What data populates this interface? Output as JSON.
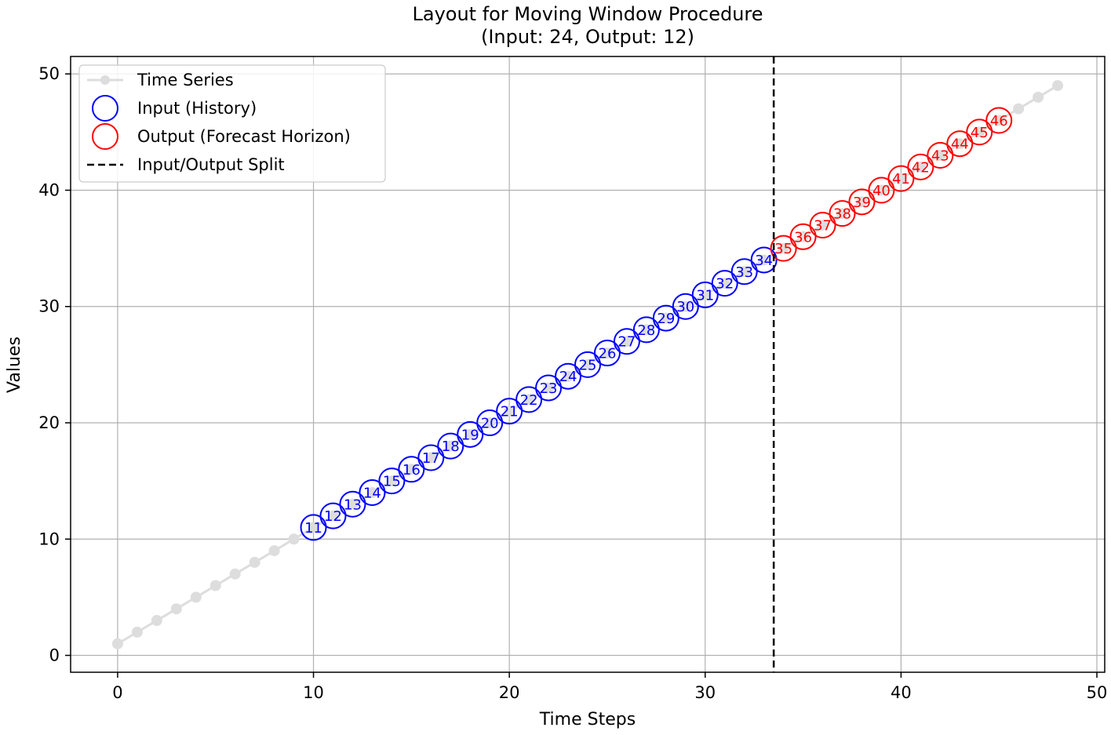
{
  "chart_data": {
    "type": "scatter",
    "title": "Layout for Moving Window Procedure",
    "subtitle": "(Input: 24, Output: 12)",
    "xlabel": "Time Steps",
    "ylabel": "Values",
    "xlim": [
      -2.4,
      50.4
    ],
    "ylim": [
      -1.45,
      51.5
    ],
    "xticks": [
      0,
      10,
      20,
      30,
      40,
      50
    ],
    "yticks": [
      0,
      10,
      20,
      30,
      40,
      50
    ],
    "xtick_labels": [
      "0",
      "10",
      "20",
      "30",
      "40",
      "50"
    ],
    "ytick_labels": [
      "0",
      "10",
      "20",
      "30",
      "40",
      "50"
    ],
    "grid": true,
    "legend_position": "upper-left",
    "split_x": 33.5,
    "series": [
      {
        "name": "Time Series",
        "kind": "line-markers",
        "color": "#dddddd",
        "x": [
          0,
          1,
          2,
          3,
          4,
          5,
          6,
          7,
          8,
          9,
          10,
          11,
          12,
          13,
          14,
          15,
          16,
          17,
          18,
          19,
          20,
          21,
          22,
          23,
          24,
          25,
          26,
          27,
          28,
          29,
          30,
          31,
          32,
          33,
          34,
          35,
          36,
          37,
          38,
          39,
          40,
          41,
          42,
          43,
          44,
          45,
          46,
          47,
          48
        ],
        "y": [
          1,
          2,
          3,
          4,
          5,
          6,
          7,
          8,
          9,
          10,
          11,
          12,
          13,
          14,
          15,
          16,
          17,
          18,
          19,
          20,
          21,
          22,
          23,
          24,
          25,
          26,
          27,
          28,
          29,
          30,
          31,
          32,
          33,
          34,
          35,
          36,
          37,
          38,
          39,
          40,
          41,
          42,
          43,
          44,
          45,
          46,
          47,
          48,
          49
        ]
      },
      {
        "name": "Input (History)",
        "kind": "hollow-circles",
        "color": "#0000ff",
        "x": [
          10,
          11,
          12,
          13,
          14,
          15,
          16,
          17,
          18,
          19,
          20,
          21,
          22,
          23,
          24,
          25,
          26,
          27,
          28,
          29,
          30,
          31,
          32,
          33
        ],
        "y": [
          11,
          12,
          13,
          14,
          15,
          16,
          17,
          18,
          19,
          20,
          21,
          22,
          23,
          24,
          25,
          26,
          27,
          28,
          29,
          30,
          31,
          32,
          33,
          34
        ],
        "labels": [
          "11",
          "12",
          "13",
          "14",
          "15",
          "16",
          "17",
          "18",
          "19",
          "20",
          "21",
          "22",
          "23",
          "24",
          "25",
          "26",
          "27",
          "28",
          "29",
          "30",
          "31",
          "32",
          "33",
          "34"
        ]
      },
      {
        "name": "Output (Forecast Horizon)",
        "kind": "hollow-circles",
        "color": "#ff0000",
        "x": [
          34,
          35,
          36,
          37,
          38,
          39,
          40,
          41,
          42,
          43,
          44,
          45
        ],
        "y": [
          35,
          36,
          37,
          38,
          39,
          40,
          41,
          42,
          43,
          44,
          45,
          46
        ],
        "labels": [
          "35",
          "36",
          "37",
          "38",
          "39",
          "40",
          "41",
          "42",
          "43",
          "44",
          "45",
          "46"
        ]
      },
      {
        "name": "Input/Output Split",
        "kind": "dashed-vline",
        "color": "#000000"
      }
    ]
  }
}
